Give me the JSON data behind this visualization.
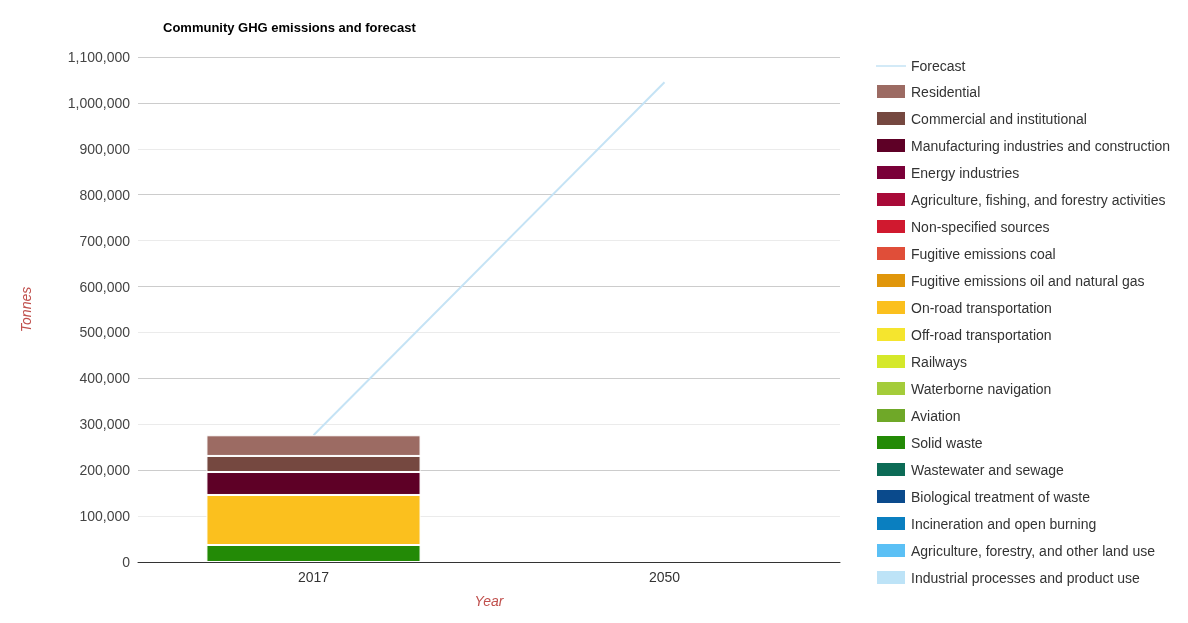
{
  "chart_data": {
    "type": "bar",
    "title": "Community GHG emissions and forecast",
    "xlabel": "Year",
    "ylabel": "Tonnes",
    "categories": [
      "2017",
      "2050"
    ],
    "stacked": true,
    "ylim": [
      0,
      1100000
    ],
    "yticks": [
      0,
      {
        "value": 100000,
        "label": "100,000"
      },
      {
        "value": 200000,
        "label": "200,000"
      },
      {
        "value": 300000,
        "label": "300,000"
      },
      {
        "value": 400000,
        "label": "400,000"
      },
      {
        "value": 500000,
        "label": "500,000"
      },
      {
        "value": 600000,
        "label": "600,000"
      },
      {
        "value": 700000,
        "label": "700,000"
      },
      {
        "value": 800000,
        "label": "800,000"
      },
      {
        "value": 900000,
        "label": "900,000"
      },
      {
        "value": 1000000,
        "label": "1,000,000"
      },
      {
        "value": 1100000,
        "label": "1,100,000"
      }
    ],
    "grid": true,
    "legend": "right",
    "series": [
      {
        "name": "Industrial processes and product use",
        "color": "#bde3f7",
        "values": [
          null,
          null
        ]
      },
      {
        "name": "Agriculture, forestry, and other land use",
        "color": "#5bc0f5",
        "values": [
          null,
          null
        ]
      },
      {
        "name": "Incineration and open burning",
        "color": "#0a7fc0",
        "values": [
          null,
          null
        ]
      },
      {
        "name": "Biological treatment of waste",
        "color": "#0a4a8c",
        "values": [
          null,
          null
        ]
      },
      {
        "name": "Wastewater and sewage",
        "color": "#0c6b56",
        "values": [
          null,
          null
        ]
      },
      {
        "name": "Solid waste",
        "color": "#238a06",
        "values": [
          37000,
          null
        ]
      },
      {
        "name": "Aviation",
        "color": "#6fa828",
        "values": [
          null,
          null
        ]
      },
      {
        "name": "Waterborne navigation",
        "color": "#a4cc3a",
        "values": [
          null,
          null
        ]
      },
      {
        "name": "Railways",
        "color": "#d5e82a",
        "values": [
          null,
          null
        ]
      },
      {
        "name": "Off-road transportation",
        "color": "#f5e52e",
        "values": [
          null,
          null
        ]
      },
      {
        "name": "On-road transportation",
        "color": "#fbc01e",
        "values": [
          109000,
          null
        ]
      },
      {
        "name": "Fugitive emissions oil and natural gas",
        "color": "#e0960b",
        "values": [
          null,
          null
        ]
      },
      {
        "name": "Fugitive emissions coal",
        "color": "#e04e39",
        "values": [
          null,
          null
        ]
      },
      {
        "name": "Non-specified sources",
        "color": "#d0192f",
        "values": [
          null,
          null
        ]
      },
      {
        "name": "Agriculture, fishing, and forestry activities",
        "color": "#a80a38",
        "values": [
          null,
          null
        ]
      },
      {
        "name": "Energy industries",
        "color": "#7a0038",
        "values": [
          null,
          null
        ]
      },
      {
        "name": "Manufacturing industries and construction",
        "color": "#5e0026",
        "values": [
          50000,
          null
        ]
      },
      {
        "name": "Commercial and institutional",
        "color": "#754840",
        "values": [
          35000,
          null
        ]
      },
      {
        "name": "Residential",
        "color": "#9c6b63",
        "values": [
          45000,
          null
        ]
      },
      {
        "name": "Forecast",
        "type": "line",
        "marker": "none",
        "color": "#c5e3f5",
        "values": [
          276000,
          1045000
        ]
      }
    ]
  }
}
